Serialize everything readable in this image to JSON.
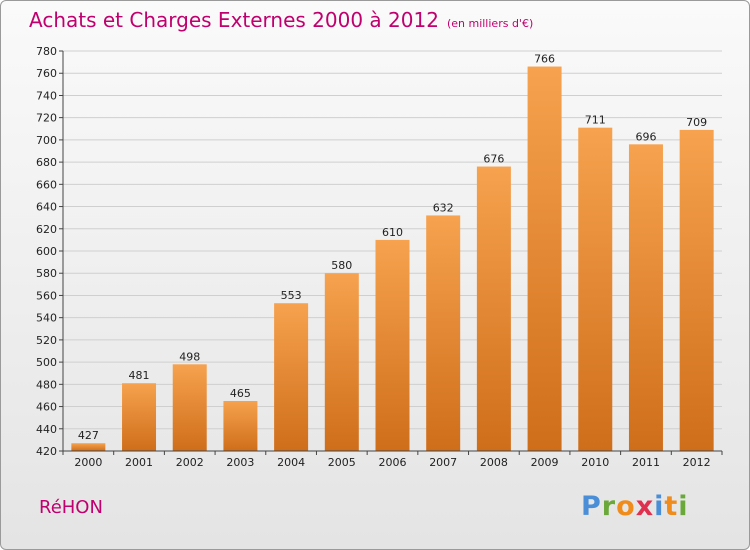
{
  "title": "Achats et Charges Externes 2000 à 2012",
  "subtitle": "(en milliers d'€)",
  "city": "RéHON",
  "logo": {
    "letters": [
      "P",
      "r",
      "o",
      "x",
      "i",
      "t",
      "i"
    ],
    "colors": [
      "#4a8ed8",
      "#6aa83a",
      "#f08c1c",
      "#e03050",
      "#4a8ed8",
      "#f08c1c",
      "#6aa83a"
    ]
  },
  "colors": {
    "bar_top": "#f6a24e",
    "bar_bottom": "#cf6e1a",
    "accent": "#c0006f"
  },
  "chart_data": {
    "type": "bar",
    "categories": [
      "2000",
      "2001",
      "2002",
      "2003",
      "2004",
      "2005",
      "2006",
      "2007",
      "2008",
      "2009",
      "2010",
      "2011",
      "2012"
    ],
    "values": [
      427,
      481,
      498,
      465,
      553,
      580,
      610,
      632,
      676,
      766,
      711,
      696,
      709
    ],
    "ylim": [
      420,
      780
    ],
    "yticks": [
      420,
      440,
      460,
      480,
      500,
      520,
      540,
      560,
      580,
      600,
      620,
      640,
      660,
      680,
      700,
      720,
      740,
      760,
      780
    ],
    "grid": true
  }
}
